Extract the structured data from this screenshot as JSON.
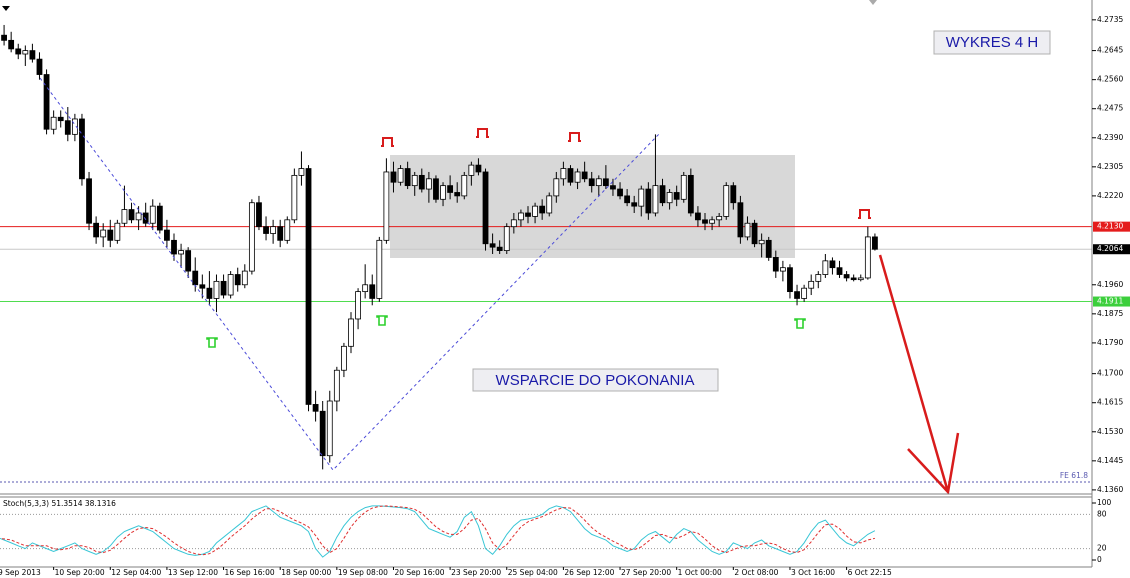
{
  "chart_data": {
    "type": "candlestick",
    "categories": [
      "9 Sep 2013",
      null,
      null,
      null,
      null,
      null,
      null,
      null,
      "10 Sep 20:00",
      null,
      null,
      null,
      null,
      null,
      null,
      null,
      "12 Sep 04:00",
      null,
      null,
      null,
      null,
      null,
      null,
      null,
      "13 Sep 12:00",
      null,
      null,
      null,
      null,
      null,
      null,
      null,
      "16 Sep 16:00",
      null,
      null,
      null,
      null,
      null,
      null,
      null,
      "18 Sep 00:00",
      null,
      null,
      null,
      null,
      null,
      null,
      null,
      "19 Sep 08:00",
      null,
      null,
      null,
      null,
      null,
      null,
      null,
      "20 Sep 16:00",
      null,
      null,
      null,
      null,
      null,
      null,
      null,
      "23 Sep 20:00",
      null,
      null,
      null,
      null,
      null,
      null,
      null,
      "25 Sep 04:00",
      null,
      null,
      null,
      null,
      null,
      null,
      null,
      "26 Sep 12:00",
      null,
      null,
      null,
      null,
      null,
      null,
      null,
      "27 Sep 20:00",
      null,
      null,
      null,
      null,
      null,
      null,
      null,
      "1 Oct 00:00",
      null,
      null,
      null,
      null,
      null,
      null,
      null,
      "2 Oct 08:00",
      null,
      null,
      null,
      null,
      null,
      null,
      null,
      "3 Oct 16:00",
      null,
      null,
      null,
      null,
      null,
      null,
      null,
      "6 Oct 22:15",
      null,
      null,
      null,
      null
    ],
    "ohlc": [
      [
        4.27,
        4.2735,
        4.268,
        4.269
      ],
      [
        4.269,
        4.272,
        4.266,
        4.2675
      ],
      [
        4.2675,
        4.27,
        4.264,
        4.265
      ],
      [
        4.265,
        4.2665,
        4.262,
        4.2635
      ],
      [
        4.2635,
        4.266,
        4.26,
        4.2645
      ],
      [
        4.2645,
        4.2665,
        4.261,
        4.262
      ],
      [
        4.262,
        4.264,
        4.256,
        4.2575
      ],
      [
        4.2575,
        4.259,
        4.24,
        4.2415
      ],
      [
        4.2415,
        4.247,
        4.24,
        4.245
      ],
      [
        4.245,
        4.247,
        4.242,
        4.244
      ],
      [
        4.244,
        4.248,
        4.238,
        4.24
      ],
      [
        4.24,
        4.246,
        4.238,
        4.2445
      ],
      [
        4.2445,
        4.246,
        4.225,
        4.227
      ],
      [
        4.227,
        4.229,
        4.212,
        4.214
      ],
      [
        4.214,
        4.216,
        4.208,
        4.21
      ],
      [
        4.21,
        4.214,
        4.207,
        4.212
      ],
      [
        4.212,
        4.215,
        4.207,
        4.209
      ],
      [
        4.209,
        4.215,
        4.208,
        4.214
      ],
      [
        4.214,
        4.225,
        4.213,
        4.218
      ],
      [
        4.218,
        4.22,
        4.214,
        4.215
      ],
      [
        4.215,
        4.219,
        4.212,
        4.217
      ],
      [
        4.217,
        4.22,
        4.213,
        4.214
      ],
      [
        4.214,
        4.221,
        4.212,
        4.219
      ],
      [
        4.219,
        4.22,
        4.211,
        4.212
      ],
      [
        4.212,
        4.215,
        4.207,
        4.209
      ],
      [
        4.209,
        4.211,
        4.203,
        4.205
      ],
      [
        4.205,
        4.208,
        4.201,
        4.206
      ],
      [
        4.206,
        4.207,
        4.198,
        4.2
      ],
      [
        4.2,
        4.204,
        4.194,
        4.196
      ],
      [
        4.196,
        4.199,
        4.192,
        4.195
      ],
      [
        4.195,
        4.2,
        4.19,
        4.192
      ],
      [
        4.192,
        4.199,
        4.188,
        4.197
      ],
      [
        4.197,
        4.199,
        4.192,
        4.193
      ],
      [
        4.193,
        4.2,
        4.192,
        4.199
      ],
      [
        4.199,
        4.201,
        4.194,
        4.196
      ],
      [
        4.196,
        4.202,
        4.195,
        4.2
      ],
      [
        4.2,
        4.221,
        4.199,
        4.22
      ],
      [
        4.22,
        4.222,
        4.212,
        4.213
      ],
      [
        4.213,
        4.216,
        4.209,
        4.211
      ],
      [
        4.211,
        4.215,
        4.208,
        4.213
      ],
      [
        4.213,
        4.215,
        4.207,
        4.209
      ],
      [
        4.209,
        4.216,
        4.208,
        4.215
      ],
      [
        4.215,
        4.23,
        4.214,
        4.228
      ],
      [
        4.228,
        4.235,
        4.225,
        4.23
      ],
      [
        4.23,
        4.231,
        4.159,
        4.161
      ],
      [
        4.161,
        4.165,
        4.156,
        4.159
      ],
      [
        4.159,
        4.162,
        4.142,
        4.146
      ],
      [
        4.146,
        4.165,
        4.144,
        4.162
      ],
      [
        4.162,
        4.172,
        4.159,
        4.171
      ],
      [
        4.171,
        4.179,
        4.169,
        4.178
      ],
      [
        4.178,
        4.188,
        4.176,
        4.186
      ],
      [
        4.186,
        4.195,
        4.183,
        4.194
      ],
      [
        4.194,
        4.202,
        4.192,
        4.196
      ],
      [
        4.196,
        4.199,
        4.19,
        4.192
      ],
      [
        4.192,
        4.21,
        4.191,
        4.209
      ],
      [
        4.209,
        4.233,
        4.208,
        4.229
      ],
      [
        4.229,
        4.232,
        4.223,
        4.226
      ],
      [
        4.226,
        4.231,
        4.225,
        4.23
      ],
      [
        4.23,
        4.232,
        4.224,
        4.225
      ],
      [
        4.225,
        4.229,
        4.222,
        4.228
      ],
      [
        4.228,
        4.23,
        4.223,
        4.224
      ],
      [
        4.224,
        4.229,
        4.22,
        4.227
      ],
      [
        4.227,
        4.228,
        4.22,
        4.221
      ],
      [
        4.221,
        4.226,
        4.219,
        4.225
      ],
      [
        4.225,
        4.228,
        4.221,
        4.223
      ],
      [
        4.223,
        4.226,
        4.22,
        4.222
      ],
      [
        4.222,
        4.229,
        4.221,
        4.228
      ],
      [
        4.228,
        4.232,
        4.225,
        4.231
      ],
      [
        4.231,
        4.233,
        4.228,
        4.229
      ],
      [
        4.229,
        4.23,
        4.206,
        4.208
      ],
      [
        4.208,
        4.211,
        4.205,
        4.207
      ],
      [
        4.207,
        4.209,
        4.205,
        4.206
      ],
      [
        4.206,
        4.214,
        4.205,
        4.213
      ],
      [
        4.213,
        4.217,
        4.211,
        4.215
      ],
      [
        4.215,
        4.218,
        4.213,
        4.217
      ],
      [
        4.217,
        4.219,
        4.214,
        4.216
      ],
      [
        4.216,
        4.22,
        4.214,
        4.219
      ],
      [
        4.219,
        4.221,
        4.215,
        4.217
      ],
      [
        4.217,
        4.223,
        4.216,
        4.222
      ],
      [
        4.222,
        4.229,
        4.22,
        4.227
      ],
      [
        4.227,
        4.232,
        4.225,
        4.23
      ],
      [
        4.23,
        4.231,
        4.225,
        4.226
      ],
      [
        4.226,
        4.23,
        4.224,
        4.229
      ],
      [
        4.229,
        4.232,
        4.226,
        4.227
      ],
      [
        4.227,
        4.229,
        4.223,
        4.225
      ],
      [
        4.225,
        4.228,
        4.222,
        4.227
      ],
      [
        4.227,
        4.231,
        4.224,
        4.225
      ],
      [
        4.225,
        4.227,
        4.222,
        4.224
      ],
      [
        4.224,
        4.226,
        4.221,
        4.222
      ],
      [
        4.222,
        4.224,
        4.219,
        4.22
      ],
      [
        4.22,
        4.222,
        4.217,
        4.219
      ],
      [
        4.219,
        4.225,
        4.216,
        4.224
      ],
      [
        4.224,
        4.226,
        4.215,
        4.217
      ],
      [
        4.217,
        4.24,
        4.216,
        4.225
      ],
      [
        4.225,
        4.227,
        4.219,
        4.22
      ],
      [
        4.22,
        4.224,
        4.218,
        4.223
      ],
      [
        4.223,
        4.225,
        4.219,
        4.221
      ],
      [
        4.221,
        4.229,
        4.22,
        4.228
      ],
      [
        4.228,
        4.23,
        4.216,
        4.217
      ],
      [
        4.217,
        4.219,
        4.213,
        4.215
      ],
      [
        4.215,
        4.217,
        4.212,
        4.214
      ],
      [
        4.214,
        4.216,
        4.212,
        4.215
      ],
      [
        4.215,
        4.217,
        4.213,
        4.216
      ],
      [
        4.216,
        4.226,
        4.215,
        4.225
      ],
      [
        4.225,
        4.226,
        4.218,
        4.22
      ],
      [
        4.22,
        4.222,
        4.208,
        4.21
      ],
      [
        4.21,
        4.216,
        4.209,
        4.214
      ],
      [
        4.214,
        4.215,
        4.207,
        4.208
      ],
      [
        4.208,
        4.211,
        4.204,
        4.209
      ],
      [
        4.209,
        4.21,
        4.203,
        4.204
      ],
      [
        4.204,
        4.206,
        4.198,
        4.2
      ],
      [
        4.2,
        4.203,
        4.197,
        4.201
      ],
      [
        4.201,
        4.202,
        4.192,
        4.194
      ],
      [
        4.194,
        4.196,
        4.19,
        4.192
      ],
      [
        4.192,
        4.196,
        4.191,
        4.195
      ],
      [
        4.195,
        4.199,
        4.193,
        4.197
      ],
      [
        4.197,
        4.2,
        4.195,
        4.199
      ],
      [
        4.199,
        4.205,
        4.198,
        4.203
      ],
      [
        4.203,
        4.204,
        4.199,
        4.201
      ],
      [
        4.201,
        4.203,
        4.198,
        4.199
      ],
      [
        4.199,
        4.2,
        4.197,
        4.198
      ],
      [
        4.198,
        4.199,
        4.197,
        4.1975
      ],
      [
        4.1975,
        4.199,
        4.197,
        4.198
      ],
      [
        4.198,
        4.213,
        4.1975,
        4.21
      ],
      [
        4.21,
        4.211,
        4.206,
        4.2064
      ]
    ],
    "up_color": "#ffffff",
    "down_color": "#000000",
    "ylim": [
      4.1348,
      4.2793
    ],
    "yticks": [
      4.2735,
      4.2645,
      {
        "value": 4.256,
        "label": "4.2560"
      },
      4.2475,
      {
        "value": 4.239,
        "label": "4.2390"
      },
      4.2305,
      {
        "value": 4.222,
        "label": "4.2220"
      },
      {
        "value": 4.196,
        "label": "4.1960"
      },
      4.1875,
      {
        "value": 4.179,
        "label": "4.1790"
      },
      {
        "value": 4.17,
        "label": "4.1700"
      },
      4.1615,
      {
        "value": 4.153,
        "label": "4.1530"
      },
      4.1445,
      {
        "value": 4.136,
        "label": "4.1360"
      }
    ],
    "levels": [
      {
        "value": 4.213,
        "label": "4.2130",
        "color": "#e41c1c",
        "label_color": "#e41c1c"
      },
      {
        "value": 4.2064,
        "label": "4.2064",
        "color": "#c8c8c8",
        "label_color": "#000000"
      },
      {
        "value": 4.1911,
        "label": "4.1911",
        "color": "#4fdc4f",
        "label_color": "#3ccf3c"
      }
    ],
    "fe_level": {
      "value": 4.1383,
      "label": "FE 61.8",
      "color": "#5a5ab0"
    },
    "annotations": [
      "WYKRES 4 H",
      "WSPARCIE DO POKONANIA"
    ],
    "indicator": {
      "type": "line",
      "label": "Stoch(5,3,3) 51.3514 38.1316",
      "ylim": [
        0,
        100
      ],
      "yticks": [
        100,
        80,
        20,
        0
      ],
      "series": [
        {
          "color": "#39c6d6",
          "values": [
            40,
            35,
            30,
            25,
            20,
            30,
            25,
            20,
            15,
            20,
            25,
            30,
            20,
            15,
            10,
            15,
            25,
            40,
            50,
            55,
            60,
            55,
            50,
            40,
            30,
            20,
            15,
            10,
            8,
            10,
            15,
            30,
            40,
            50,
            60,
            70,
            85,
            90,
            95,
            85,
            75,
            70,
            65,
            60,
            50,
            20,
            5,
            15,
            40,
            60,
            75,
            85,
            92,
            95,
            95,
            94,
            93,
            92,
            90,
            85,
            70,
            55,
            50,
            45,
            40,
            50,
            75,
            85,
            60,
            20,
            10,
            25,
            45,
            60,
            70,
            72,
            75,
            80,
            90,
            95,
            92,
            85,
            70,
            55,
            45,
            40,
            35,
            25,
            20,
            15,
            20,
            35,
            45,
            50,
            40,
            30,
            45,
            55,
            50,
            35,
            25,
            15,
            10,
            15,
            30,
            25,
            20,
            30,
            35,
            25,
            20,
            15,
            10,
            15,
            30,
            50,
            65,
            70,
            55,
            40,
            30,
            25,
            35,
            45,
            51.3514
          ]
        },
        {
          "color": "#e03030",
          "dashed": true,
          "values": [
            38,
            37,
            35,
            30,
            25,
            25,
            25,
            25,
            20,
            18,
            20,
            25,
            25,
            22,
            15,
            13,
            17,
            27,
            38,
            48,
            55,
            57,
            55,
            48,
            40,
            30,
            22,
            15,
            11,
            9,
            11,
            18,
            28,
            40,
            50,
            60,
            72,
            82,
            90,
            90,
            85,
            77,
            70,
            65,
            58,
            43,
            25,
            13,
            20,
            38,
            58,
            73,
            84,
            91,
            94,
            95,
            94,
            93,
            92,
            89,
            82,
            70,
            58,
            50,
            45,
            45,
            55,
            70,
            73,
            55,
            30,
            18,
            27,
            43,
            58,
            67,
            72,
            76,
            82,
            88,
            92,
            91,
            82,
            70,
            57,
            47,
            40,
            33,
            27,
            20,
            18,
            23,
            33,
            43,
            45,
            40,
            38,
            43,
            50,
            47,
            37,
            25,
            17,
            13,
            18,
            23,
            25,
            25,
            28,
            30,
            27,
            20,
            15,
            13,
            18,
            32,
            48,
            62,
            63,
            55,
            42,
            32,
            30,
            35,
            38.1316
          ]
        }
      ]
    }
  }
}
